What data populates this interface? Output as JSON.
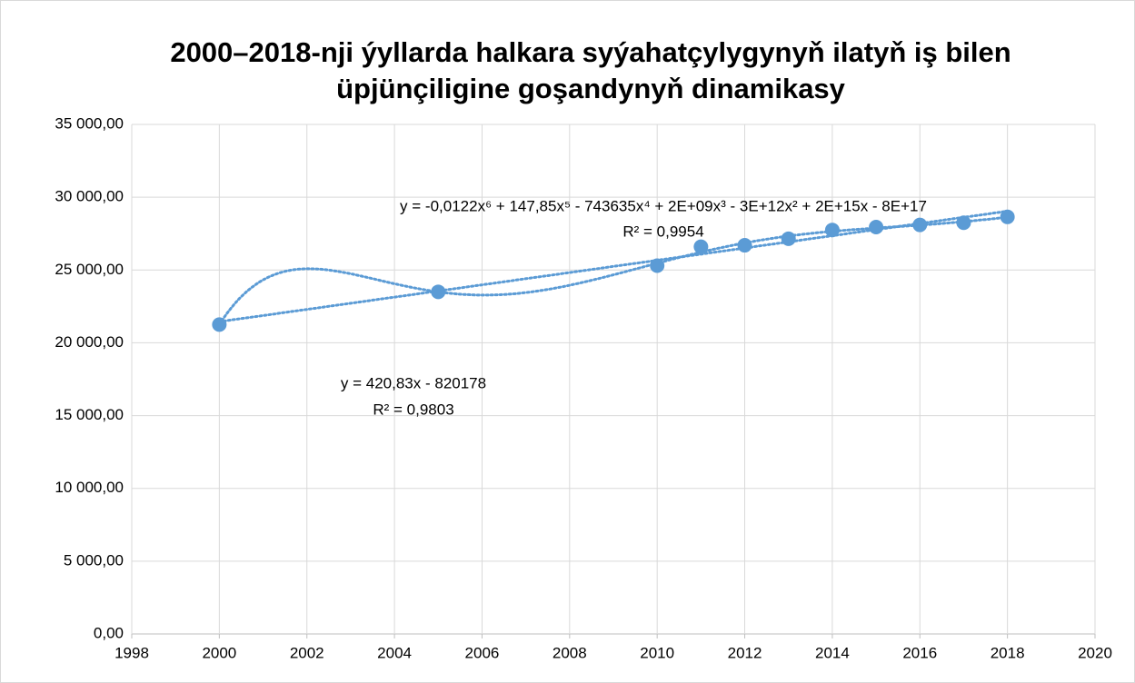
{
  "chart_data": {
    "type": "scatter",
    "title": [
      "2000–2018-nji ýyllarda halkara syýahatçylygynyň ilatyň iş bilen",
      "üpjünçiligine goşandynyň dinamikasy"
    ],
    "x": [
      2000,
      2005,
      2010,
      2011,
      2012,
      2013,
      2014,
      2015,
      2016,
      2017,
      2018
    ],
    "values": [
      21250,
      23500,
      25300,
      26600,
      26700,
      27150,
      27750,
      27950,
      28100,
      28250,
      28650
    ],
    "color": "#5b9bd5",
    "xlim": [
      1998,
      2020
    ],
    "xticks": [
      1998,
      2000,
      2002,
      2004,
      2006,
      2008,
      2010,
      2012,
      2014,
      2016,
      2018,
      2020
    ],
    "ylim": [
      0,
      35000
    ],
    "yticks": [
      {
        "value": 0,
        "label": "0,00"
      },
      {
        "value": 5000,
        "label": "5 000,00"
      },
      {
        "value": 10000,
        "label": "10 000,00"
      },
      {
        "value": 15000,
        "label": "15 000,00"
      },
      {
        "value": 20000,
        "label": "20 000,00"
      },
      {
        "value": 25000,
        "label": "25 000,00"
      },
      {
        "value": 30000,
        "label": "30 000,00"
      },
      {
        "value": 35000,
        "label": "35 000,00"
      }
    ],
    "grid": true,
    "trendlines": [
      {
        "kind": "linear",
        "order": 1,
        "equation": "y = 420,83x - 820178",
        "r2": "R² = 0,9803"
      },
      {
        "kind": "polynomial",
        "order": 6,
        "equation": "y = -0,0122x⁶ + 147,85x⁵ - 743635x⁴ + 2E+09x³ - 3E+12x² + 2E+15x - 8E+17",
        "r2": "R² = 0,9954"
      }
    ]
  }
}
